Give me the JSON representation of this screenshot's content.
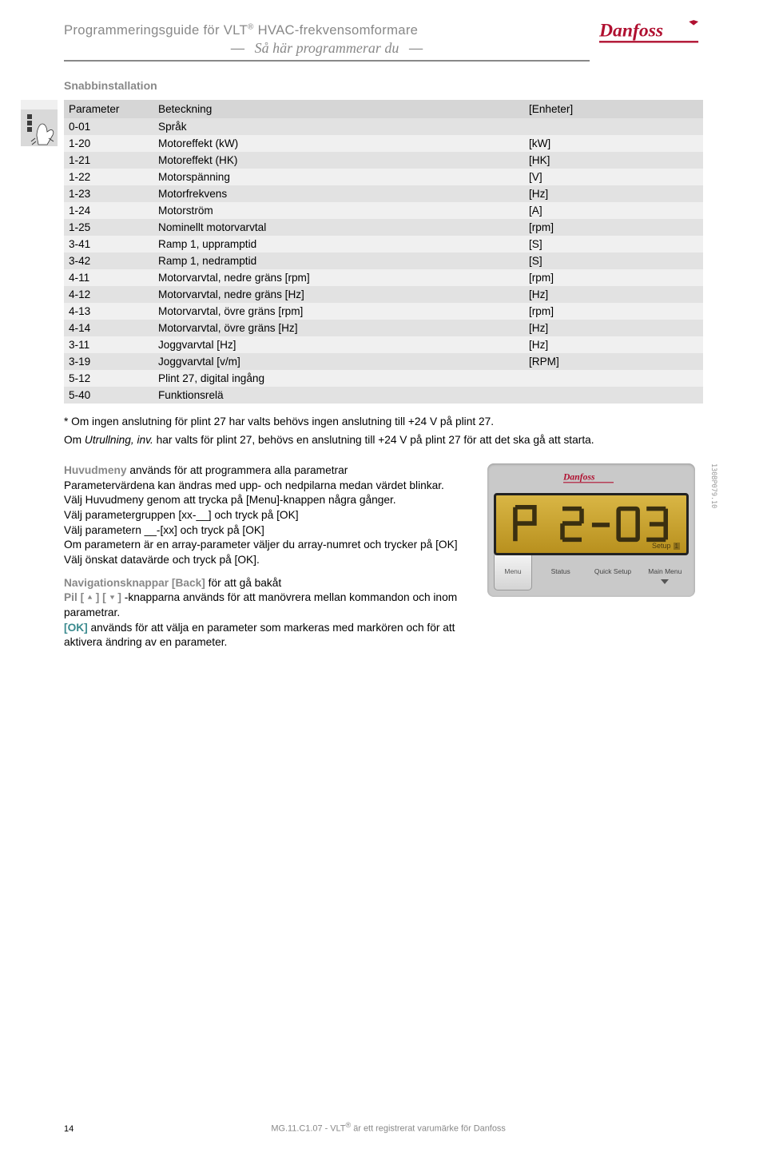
{
  "header": {
    "line1_pre": "Programmeringsguide för VLT",
    "line1_reg": "®",
    "line1_post": " HVAC-frekvensomformare",
    "line2": "Så här programmerar du",
    "line2_dash": "—"
  },
  "section_title": "Snabbinstallation",
  "table": {
    "columns": [
      "Parameter",
      "Beteckning",
      "[Enheter]"
    ],
    "rows": [
      [
        "0-01",
        "Språk",
        ""
      ],
      [
        "1-20",
        "Motoreffekt (kW)",
        "[kW]"
      ],
      [
        "1-21",
        "Motoreffekt (HK)",
        "[HK]"
      ],
      [
        "1-22",
        "Motorspänning",
        "[V]"
      ],
      [
        "1-23",
        "Motorfrekvens",
        "[Hz]"
      ],
      [
        "1-24",
        "Motorström",
        "[A]"
      ],
      [
        "1-25",
        "Nominellt motorvarvtal",
        "[rpm]"
      ],
      [
        "3-41",
        "Ramp 1, uppramptid",
        "[S]"
      ],
      [
        "3-42",
        "Ramp 1, nedramptid",
        "[S]"
      ],
      [
        "4-11",
        "Motorvarvtal, nedre gräns [rpm]",
        "[rpm]"
      ],
      [
        "4-12",
        "Motorvarvtal, nedre gräns [Hz]",
        "[Hz]"
      ],
      [
        "4-13",
        "Motorvarvtal, övre gräns [rpm]",
        "[rpm]"
      ],
      [
        "4-14",
        "Motorvarvtal, övre gräns [Hz]",
        "[Hz]"
      ],
      [
        "3-11",
        "Joggvarvtal [Hz]",
        "[Hz]"
      ],
      [
        "3-19",
        "Joggvarvtal [v/m]",
        "[RPM]"
      ],
      [
        "5-12",
        "Plint 27, digital ingång",
        ""
      ],
      [
        "5-40",
        "Funktionsrelä",
        ""
      ]
    ]
  },
  "note": {
    "line1": "* Om ingen anslutning för plint 27 har valts behövs ingen anslutning till +24 V på plint 27.",
    "line2_pre": "Om ",
    "line2_ital": "Utrullning, inv.",
    "line2_post": " har valts för plint 27, behövs en anslutning till +24 V på plint 27 för att det ska gå att starta."
  },
  "body": {
    "huvudmeny_label": "Huvudmeny",
    "huvudmeny_text": " används för att programmera alla parametrar",
    "p2": "Parametervärdena kan ändras med upp- och nedpilarna medan värdet blinkar.",
    "p3": "Välj Huvudmeny genom att trycka på [Menu]-knappen några gånger.",
    "p4": "Välj parametergruppen [xx-__] och tryck på [OK]",
    "p5": "Välj parametern __-[xx] och tryck på [OK]",
    "p6": "Om parametern är en array-parameter väljer du array-numret och trycker på [OK]",
    "p7": "Välj önskat datavärde och tryck på [OK].",
    "nav_label": "Navigationsknappar [Back]",
    "nav_text": " för att gå bakåt",
    "pil_label": "Pil",
    "pil_text": " -knapparna används för att manövrera mellan kommandon och inom parametrar.",
    "ok_label": "[OK]",
    "ok_text": " används för att välja en parameter som markeras med markören och för att aktivera ändring av en parameter."
  },
  "lcd": {
    "setup_text": "Setup",
    "setup_num": "1",
    "btn_menu": "Menu",
    "label_status": "Status",
    "label_quick": "Quick Setup",
    "label_main": "Main Menu",
    "image_code": "130BP079.10"
  },
  "footer": {
    "page_num": "14",
    "text_pre": "MG.11.C1.07 - VLT",
    "text_reg": "®",
    "text_post": " är ett registrerat varumärke för Danfoss"
  },
  "colors": {
    "logo_red": "#b01030",
    "lcd_amber_top": "#d9b645",
    "lcd_amber_bottom": "#b8901e"
  }
}
